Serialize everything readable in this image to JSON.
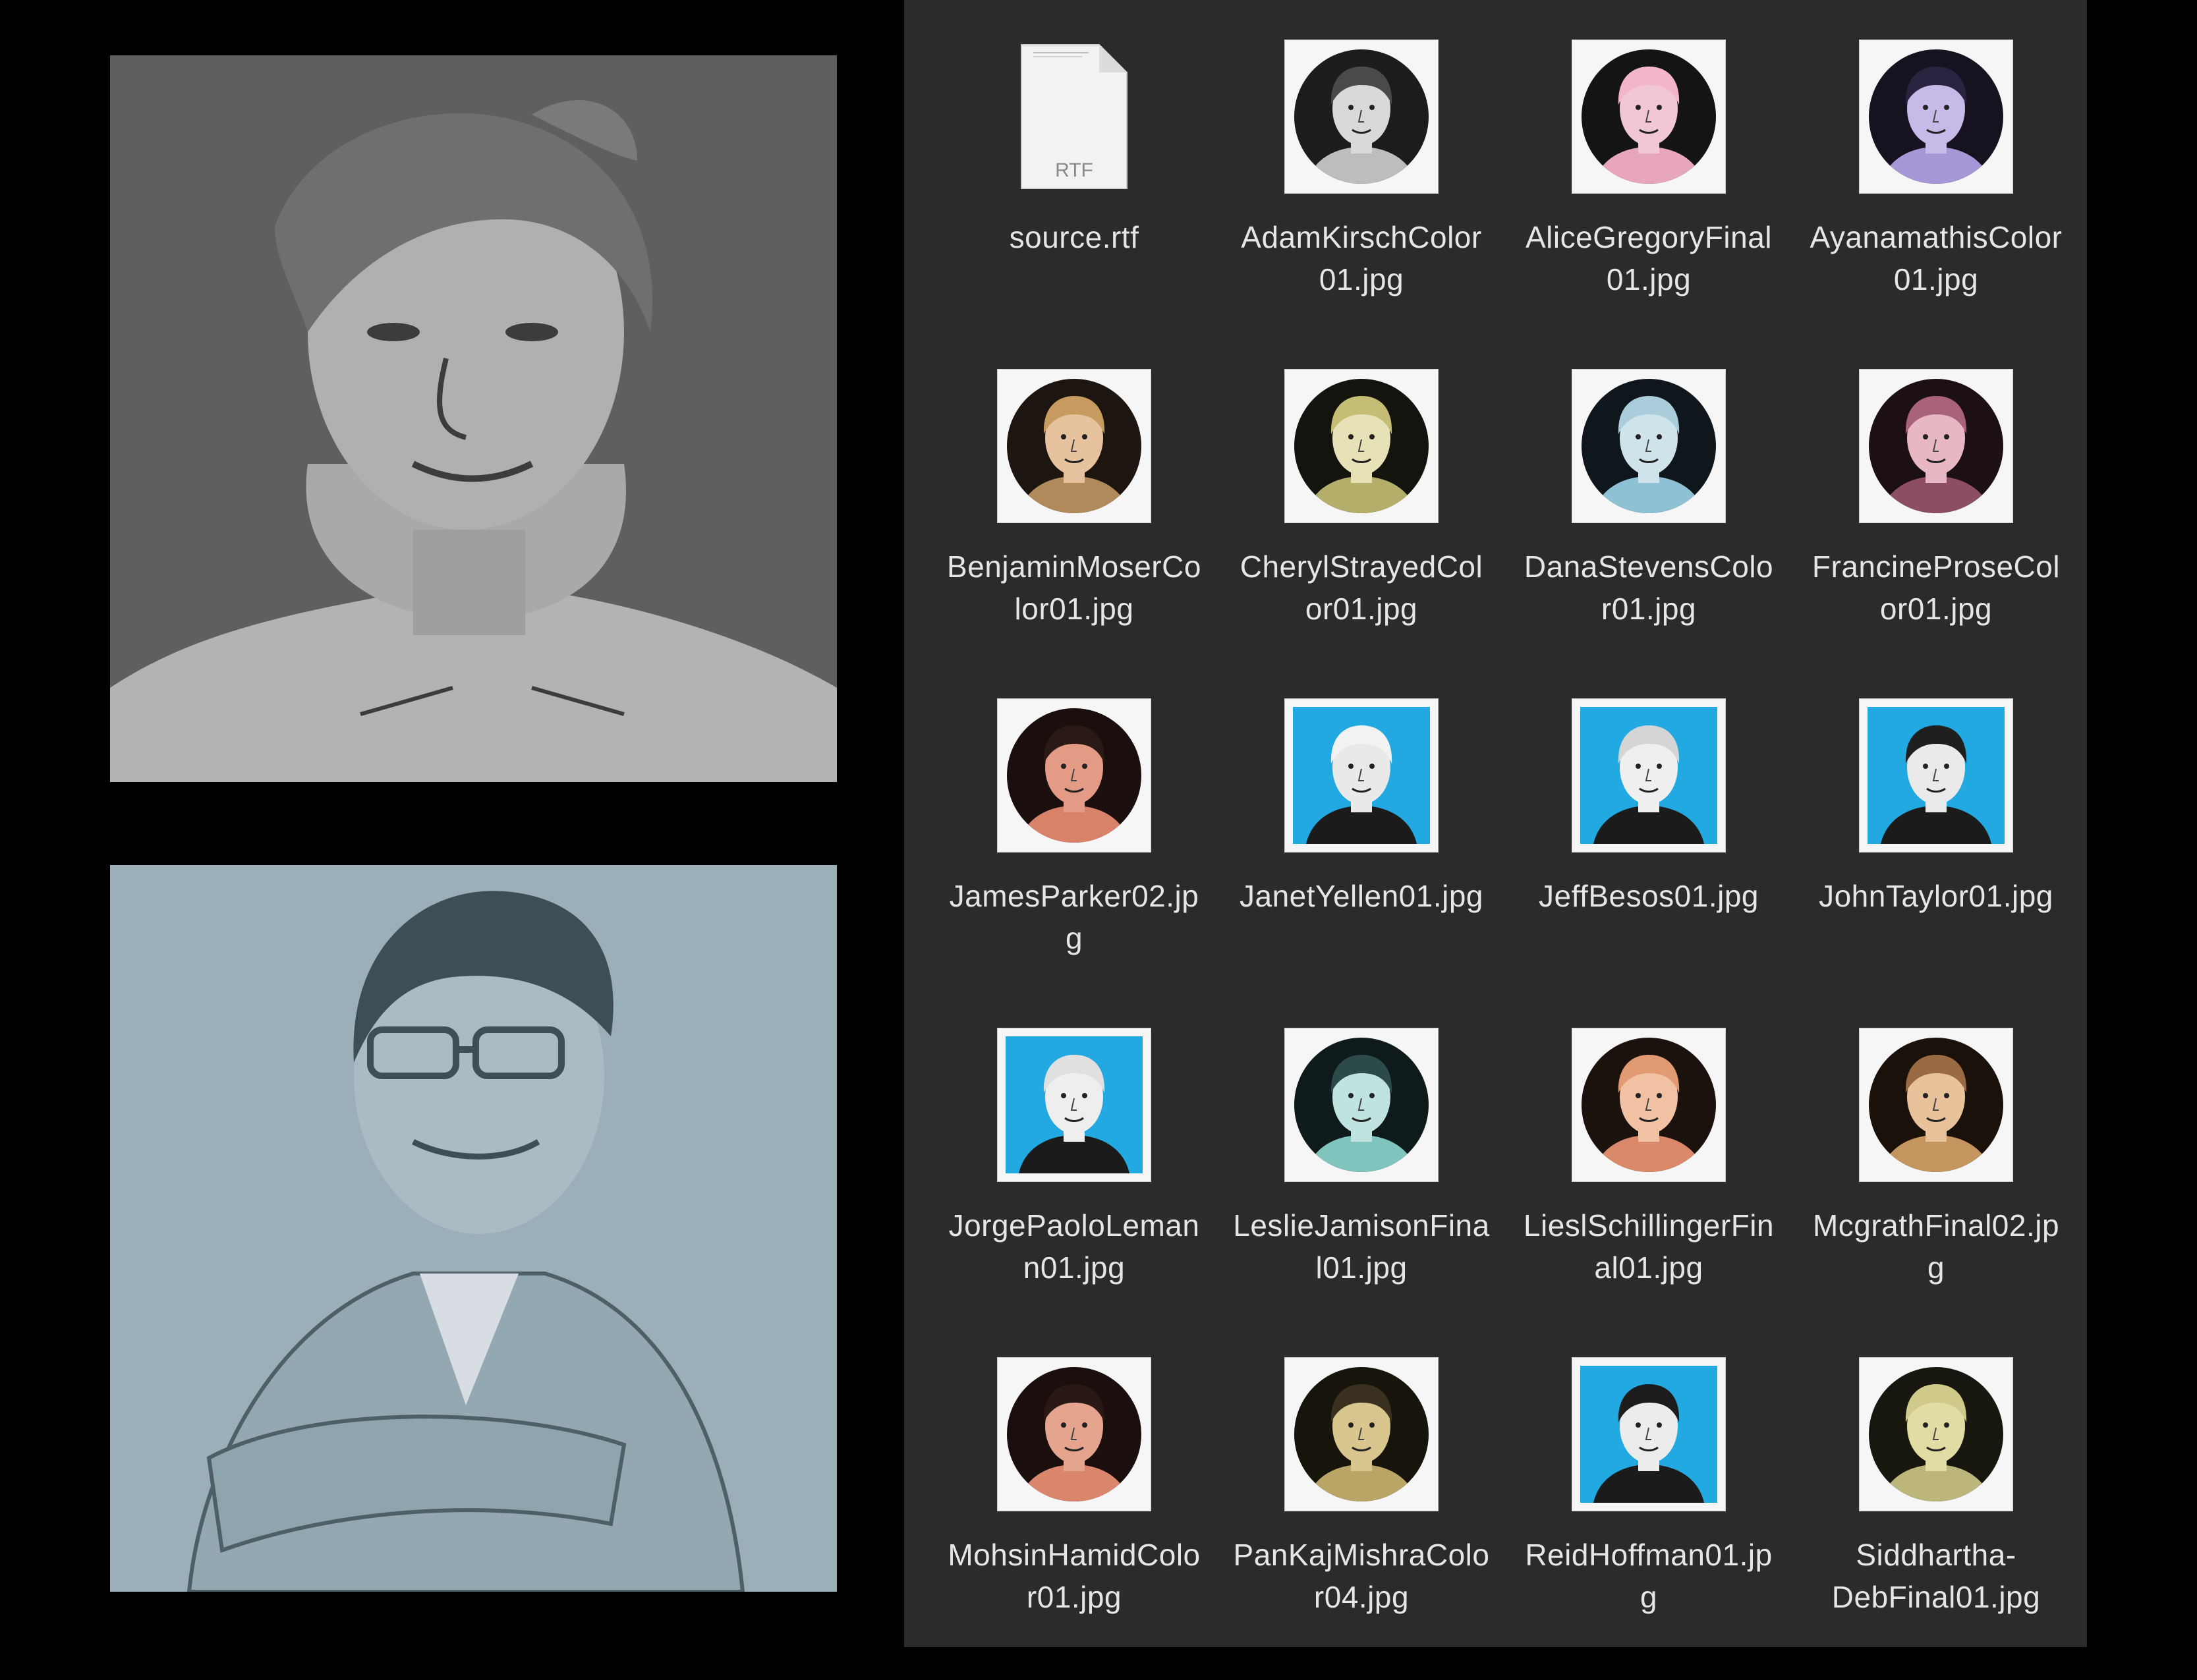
{
  "previews": {
    "top": {
      "name": "grayscale-portrait-preview"
    },
    "bottom": {
      "name": "blue-portrait-preview"
    }
  },
  "finder": {
    "files": [
      {
        "lines": [
          "source.rtf"
        ],
        "kind": "rtf",
        "badge": "RTF"
      },
      {
        "lines": [
          "AdamKirschColor",
          "01.jpg"
        ],
        "kind": "circle",
        "bg": "#1c1c1c",
        "skin": "#d9d9d9",
        "hair": "#4a4a4a",
        "shirt": "#bdbdbd"
      },
      {
        "lines": [
          "AliceGregoryFinal",
          "01.jpg"
        ],
        "kind": "circle",
        "bg": "#141414",
        "skin": "#f0c7d2",
        "hair": "#f3b6c9",
        "shirt": "#e7a6bc"
      },
      {
        "lines": [
          "AyanamathisColor",
          "01.jpg"
        ],
        "kind": "circle",
        "bg": "#16121f",
        "skin": "#c7b9e8",
        "hair": "#2a2340",
        "shirt": "#a897d6"
      },
      {
        "lines": [
          "BenjaminMoserCo",
          "lor01.jpg"
        ],
        "kind": "circle",
        "bg": "#1c1510",
        "skin": "#e6c39e",
        "hair": "#c79a5f",
        "shirt": "#b08a5a"
      },
      {
        "lines": [
          "CherylStrayedCol",
          "or01.jpg"
        ],
        "kind": "circle",
        "bg": "#14140f",
        "skin": "#e7e1b8",
        "hair": "#c6bd74",
        "shirt": "#b5ad6a"
      },
      {
        "lines": [
          "DanaStevensColo",
          "r01.jpg"
        ],
        "kind": "circle",
        "bg": "#0f171c",
        "skin": "#cfe4ea",
        "hair": "#a9cddb",
        "shirt": "#8ec1d4"
      },
      {
        "lines": [
          "FrancineProseCol",
          "or01.jpg"
        ],
        "kind": "circle",
        "bg": "#1c1014",
        "skin": "#e8b7c4",
        "hair": "#a8627a",
        "shirt": "#8c4e64"
      },
      {
        "lines": [
          "JamesParker02.jp",
          "g"
        ],
        "kind": "circle",
        "bg": "#1a0f0d",
        "skin": "#e39b86",
        "hair": "#2a1a16",
        "shirt": "#d9826a"
      },
      {
        "lines": [
          "JanetYellen01.jpg"
        ],
        "kind": "square",
        "bg": "#23a9e1",
        "skin": "#e9e9e9",
        "hair": "#f2f2f2",
        "shirt": "#1b1b1b"
      },
      {
        "lines": [
          "JeffBesos01.jpg"
        ],
        "kind": "square",
        "bg": "#23a9e1",
        "skin": "#efefef",
        "hair": "#d5d5d5",
        "shirt": "#1b1b1b"
      },
      {
        "lines": [
          "JohnTaylor01.jpg"
        ],
        "kind": "square",
        "bg": "#23a9e1",
        "skin": "#eaeaea",
        "hair": "#1f1f1f",
        "shirt": "#1b1b1b"
      },
      {
        "lines": [
          "JorgePaoloLeman",
          "n01.jpg"
        ],
        "kind": "square",
        "bg": "#23a9e1",
        "skin": "#eeeeee",
        "hair": "#e0e0e0",
        "shirt": "#1b1b1b"
      },
      {
        "lines": [
          "LeslieJamisonFina",
          "l01.jpg"
        ],
        "kind": "circle",
        "bg": "#0f1a1a",
        "skin": "#bfe3de",
        "hair": "#2b4a48",
        "shirt": "#7fc4bd"
      },
      {
        "lines": [
          "LieslSchillingerFin",
          "al01.jpg"
        ],
        "kind": "circle",
        "bg": "#1c120d",
        "skin": "#f1c1a3",
        "hair": "#e29a72",
        "shirt": "#d9896a"
      },
      {
        "lines": [
          "McgrathFinal02.jp",
          "g"
        ],
        "kind": "circle",
        "bg": "#1b110b",
        "skin": "#e8c29a",
        "hair": "#9a6a43",
        "shirt": "#c4955f"
      },
      {
        "lines": [
          "MohsinHamidColo",
          "r01.jpg"
        ],
        "kind": "circle",
        "bg": "#1a0f0d",
        "skin": "#e5a48d",
        "hair": "#2a1814",
        "shirt": "#d9866d"
      },
      {
        "lines": [
          "PanKajMishraColo",
          "r04.jpg"
        ],
        "kind": "circle",
        "bg": "#17140c",
        "skin": "#d9c58e",
        "hair": "#3a3020",
        "shirt": "#b9a566"
      },
      {
        "lines": [
          "ReidHoffman01.jp",
          "g"
        ],
        "kind": "square",
        "bg": "#23a9e1",
        "skin": "#ececec",
        "hair": "#1c1c1c",
        "shirt": "#1b1b1b"
      },
      {
        "lines": [
          "Siddhartha-",
          "DebFinal01.jpg"
        ],
        "kind": "circle",
        "bg": "#17170f",
        "skin": "#e1dca3",
        "hair": "#cfc98a",
        "shirt": "#bdb67a"
      }
    ]
  }
}
